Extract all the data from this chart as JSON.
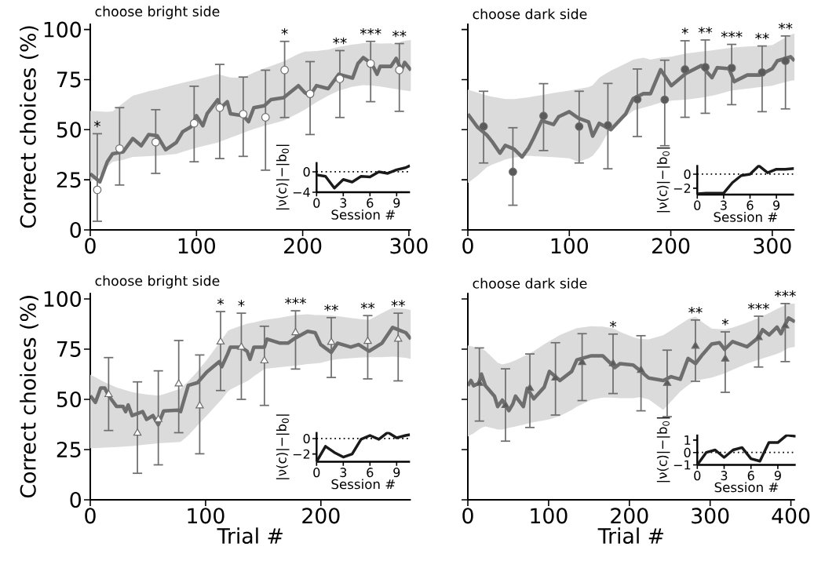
{
  "chart_data": [
    {
      "type": "line",
      "title": "choose bright side",
      "ylabel": "Correct choices (%)",
      "xlim": [
        0,
        302
      ],
      "ylim": [
        0,
        103
      ],
      "xticks": [
        0,
        100,
        200,
        300
      ],
      "yticks": [
        0,
        25,
        50,
        75,
        100
      ],
      "series": [
        {
          "color": "#6e6e6e",
          "x": [
            0,
            9,
            16,
            21,
            31,
            40,
            48,
            55,
            63,
            71,
            81,
            87,
            95,
            100,
            106,
            110,
            120,
            123,
            129,
            132,
            144,
            149,
            154,
            164,
            170,
            182,
            196,
            202,
            207,
            213,
            224,
            234,
            247,
            252,
            257,
            265,
            270,
            273,
            283,
            288,
            293,
            296,
            302
          ],
          "values": [
            28,
            24,
            34,
            38,
            39,
            45.6,
            42,
            47.6,
            47,
            40,
            43.6,
            49,
            51.5,
            57,
            52,
            58,
            65,
            61,
            64,
            58,
            57,
            54,
            61,
            62,
            65,
            66,
            72,
            68.5,
            67,
            72,
            70.5,
            77.7,
            75.8,
            83,
            86,
            83,
            77.7,
            81.6,
            81.6,
            85.6,
            79.7,
            83.6,
            79.7
          ],
          "lower": [
            24,
            27.5,
            31.5,
            34,
            35,
            36.4,
            36.6,
            36.8,
            37,
            37.4,
            37.9,
            39,
            40.2,
            41,
            41.8,
            42.3,
            43.6,
            44.2,
            45.4,
            46,
            48.4,
            49.4,
            50.3,
            52,
            52.8,
            54.5,
            58.3,
            60,
            61.7,
            63.7,
            67,
            69.5,
            71.5,
            71.9,
            72.3,
            72.1,
            71.8,
            71.6,
            70.7,
            70.3,
            69.8,
            69.6,
            69.2
          ],
          "upper": [
            59.4,
            59.1,
            58.9,
            59.1,
            63.3,
            67,
            68.1,
            69.2,
            70.1,
            71.3,
            72.6,
            73.4,
            74.4,
            75,
            75.8,
            76.4,
            77.7,
            77.3,
            76.5,
            76.1,
            76,
            77.2,
            78.5,
            80.7,
            81.8,
            84.1,
            87.8,
            89,
            89.1,
            89.3,
            90,
            91.3,
            92.5,
            92.8,
            93.2,
            93.3,
            93.1,
            93,
            93.1,
            92.5,
            94.1,
            94.4,
            94.8
          ]
        },
        {
          "type": "scatter",
          "marker": "circle",
          "color": "#ffffff",
          "x": [
            6.6,
            27.6,
            61.6,
            97.8,
            121.9,
            144,
            165,
            183,
            207,
            235,
            264,
            291
          ],
          "values": [
            20,
            40.6,
            43.8,
            53.2,
            61,
            57.8,
            56.2,
            79.8,
            67.9,
            75.4,
            83,
            79.8
          ],
          "errors": [
            [
              4.3,
              48
            ],
            [
              22.4,
              61
            ],
            [
              28.2,
              60
            ],
            [
              34,
              71.7
            ],
            [
              35.6,
              82.6
            ],
            [
              36.7,
              76.3
            ],
            [
              29.8,
              79.7
            ],
            [
              56.1,
              94.1
            ],
            [
              47.6,
              84
            ],
            [
              56.1,
              89.5
            ],
            [
              64,
              94.1
            ],
            [
              59.2,
              93
            ]
          ]
        }
      ],
      "annotations": [
        {
          "text": "*",
          "x": 6.6,
          "y": 48
        },
        {
          "text": "*",
          "x": 183,
          "y": 94.1
        },
        {
          "text": "**",
          "x": 235,
          "y": 89.5
        },
        {
          "text": "***",
          "x": 264,
          "y": 94.1
        },
        {
          "text": "**",
          "x": 291,
          "y": 93
        }
      ]
    },
    {
      "type": "line",
      "xlabel": "Session #",
      "ylabel": "|ν(c)|−|b$_{0}$|",
      "xlim": [
        0,
        10.5
      ],
      "ylim": [
        -4,
        1.9
      ],
      "xticks": [
        0,
        3,
        6,
        9
      ],
      "yticks": [
        0,
        {
          "value": -4,
          "label": "−4"
        }
      ],
      "series": [
        {
          "color": "#1a1a1a",
          "x": [
            0,
            1,
            2,
            3,
            4,
            5,
            6,
            7,
            8,
            9,
            10,
            10.5
          ],
          "values": [
            -0.6,
            -0.9,
            -3.2,
            -1.5,
            -2.0,
            -0.9,
            -1.0,
            0,
            -0.3,
            0.4,
            0.8,
            1.2
          ]
        }
      ],
      "ref_lines": [
        {
          "axis": "y",
          "value": 0,
          "line_style": "dotted",
          "color": "#000000"
        }
      ]
    },
    {
      "type": "line",
      "title": "choose dark side",
      "xlim": [
        0,
        322
      ],
      "ylim": [
        0,
        103
      ],
      "xticks": [
        0,
        100,
        200,
        300
      ],
      "yticks": [
        0,
        25,
        50,
        75,
        100
      ],
      "tick_labels": "x",
      "series": [
        {
          "color": "#6e6e6e",
          "x": [
            0,
            9.5,
            18.6,
            24,
            31.7,
            36.9,
            45.7,
            53.4,
            60,
            65,
            72.8,
            84.4,
            89.5,
            99.9,
            109,
            119,
            123,
            129.5,
            141,
            155.4,
            163,
            173,
            180,
            190,
            200.5,
            214.7,
            230,
            240.6,
            245.7,
            257.3,
            262.5,
            275.4,
            288,
            300,
            305,
            318,
            322
          ],
          "values": [
            57.8,
            51.3,
            47.4,
            44,
            38.3,
            42.2,
            40.3,
            36.4,
            41,
            46,
            54.5,
            52.6,
            56.5,
            59,
            55.8,
            53.9,
            46.8,
            53.2,
            50,
            57.8,
            65.6,
            68,
            68,
            80,
            72,
            78,
            82,
            76,
            81,
            80.5,
            74,
            77.3,
            77.3,
            80.5,
            84.4,
            86.4,
            84.4
          ],
          "lower": [
            23.4,
            27,
            31.2,
            32.6,
            34.1,
            35.1,
            36.1,
            36.6,
            37,
            36.8,
            36.6,
            36.3,
            36.1,
            35.7,
            34,
            35.7,
            37,
            41,
            51,
            56.5,
            59.5,
            61,
            62,
            63.5,
            64.5,
            65,
            66,
            67,
            67.6,
            69.2,
            69.7,
            70.5,
            71.3,
            72,
            72.7,
            74.4,
            74.7
          ],
          "upper": [
            70,
            68.5,
            67.1,
            66.5,
            65.8,
            65.3,
            65.3,
            65.8,
            66.2,
            66.7,
            67.3,
            68.3,
            68.7,
            69.5,
            70.4,
            71.3,
            72.2,
            76,
            79.5,
            83,
            85,
            86,
            85,
            86,
            86.5,
            88,
            89,
            89.6,
            90,
            90.8,
            91.1,
            91.5,
            91.8,
            92.2,
            93.7,
            97.4,
            98
          ]
        },
        {
          "type": "scatter",
          "marker": "circle",
          "color": "#5a5a5a",
          "x": [
            15.5,
            44.4,
            74.6,
            109.7,
            138,
            167,
            194,
            214,
            234,
            260,
            290,
            313
          ],
          "values": [
            51.6,
            29,
            56.9,
            51.6,
            52.2,
            65.2,
            65,
            80.1,
            81.2,
            80.8,
            78.6,
            84.4
          ],
          "errors": [
            [
              33.4,
              69.2
            ],
            [
              12.3,
              51
            ],
            [
              39.6,
              73
            ],
            [
              33.4,
              69.2
            ],
            [
              30.5,
              73.1
            ],
            [
              46.6,
              80.3
            ],
            [
              42,
              84.7
            ],
            [
              56.2,
              94.4
            ],
            [
              58.2,
              94.8
            ],
            [
              62.5,
              92.6
            ],
            [
              59,
              91.8
            ],
            [
              60.4,
              96.8
            ]
          ]
        }
      ],
      "annotations": [
        {
          "text": "*",
          "x": 214,
          "y": 94.4
        },
        {
          "text": "**",
          "x": 234,
          "y": 94.8
        },
        {
          "text": "***",
          "x": 260,
          "y": 92.6
        },
        {
          "text": "**",
          "x": 290,
          "y": 91.8
        },
        {
          "text": "**",
          "x": 313,
          "y": 96.8
        }
      ]
    },
    {
      "type": "line",
      "xlabel": "Session #",
      "ylabel": "|ν(c)|−|b$_{0}$|",
      "xlim": [
        0,
        11
      ],
      "ylim": [
        -2.9,
        1.3
      ],
      "xticks": [
        0,
        3,
        6,
        9
      ],
      "yticks": [
        0,
        {
          "value": -2,
          "label": "−2"
        }
      ],
      "series": [
        {
          "color": "#1a1a1a",
          "x": [
            0,
            1,
            2,
            3,
            4,
            5,
            6,
            7,
            8,
            9,
            10,
            11
          ],
          "values": [
            -2.8,
            -2.7,
            -2.7,
            -2.7,
            -1.2,
            -0.2,
            0,
            1.2,
            0.2,
            0.7,
            0.7,
            0.8
          ]
        }
      ],
      "ref_lines": [
        {
          "axis": "y",
          "value": 0,
          "line_style": "dotted",
          "color": "#000000"
        }
      ]
    },
    {
      "type": "line",
      "title": "choose bright side",
      "xlabel": "Trial #",
      "ylabel": "Correct choices (%)",
      "xlim": [
        0,
        278
      ],
      "ylim": [
        0,
        103
      ],
      "xticks": [
        0,
        100,
        200
      ],
      "yticks": [
        0,
        25,
        50,
        75,
        100
      ],
      "series": [
        {
          "color": "#6e6e6e",
          "x": [
            0,
            4.5,
            9,
            12.5,
            16,
            22.7,
            28.4,
            30.6,
            32.9,
            36.3,
            45.4,
            48.8,
            54.3,
            59,
            63.6,
            76,
            78.3,
            85,
            93,
            101,
            112,
            114,
            119.2,
            121.5,
            130.6,
            136,
            138.5,
            141.9,
            151,
            153.2,
            164.6,
            171.4,
            178,
            188.5,
            195,
            199.8,
            209,
            214.5,
            225.9,
            232.7,
            241.8,
            253,
            262.2,
            273.6,
            278
          ],
          "values": [
            51.8,
            48.5,
            55.7,
            55.7,
            51.8,
            46.5,
            46.5,
            43.9,
            47.2,
            41.9,
            43.9,
            40,
            41.9,
            37.4,
            44.2,
            44.6,
            43.9,
            57,
            58.3,
            63.6,
            68.8,
            66.2,
            72.7,
            76,
            76,
            74,
            70,
            76,
            76,
            80,
            78,
            78,
            80.6,
            83.9,
            83.2,
            77.3,
            73.4,
            78,
            76,
            77.3,
            74,
            78,
            85.8,
            83.2,
            80
          ],
          "lower": [
            25.6,
            25.7,
            25.9,
            26,
            26.1,
            26.3,
            26.5,
            26.6,
            26.7,
            26.8,
            27.3,
            27.5,
            27.8,
            28.1,
            28.3,
            28.7,
            28.8,
            32,
            37,
            41.9,
            48.8,
            50,
            53.9,
            54.9,
            57.5,
            59,
            60,
            61.5,
            65,
            65.3,
            66,
            66.4,
            66.8,
            67.6,
            67.9,
            68.2,
            69.5,
            70,
            70.5,
            70.8,
            71,
            71,
            71.3,
            70.7,
            70.1
          ],
          "upper": [
            62.3,
            61,
            59.6,
            58.6,
            57.6,
            56,
            55,
            54.6,
            54.2,
            53.6,
            52.7,
            52.4,
            52.1,
            51.9,
            52.5,
            54.9,
            55.4,
            59,
            64,
            69.6,
            78.2,
            79.8,
            84,
            84.8,
            86.6,
            87.7,
            88,
            88.3,
            89.5,
            89.7,
            90.6,
            91.4,
            92,
            92.4,
            92,
            92,
            91.8,
            91.4,
            90.5,
            90,
            89.5,
            93,
            95.6,
            95,
            94.4
          ]
        },
        {
          "type": "scatter",
          "marker": "triangle",
          "color": "#ffffff",
          "x": [
            15.9,
            40.9,
            59,
            76.7,
            94.9,
            113,
            131,
            151,
            178,
            209,
            240.6,
            267
          ],
          "values": [
            52.4,
            33.2,
            40,
            57.7,
            46.8,
            78.6,
            76,
            69.2,
            83.2,
            78.4,
            78.9,
            80
          ],
          "errors": [
            [
              34.5,
              70.8
            ],
            [
              13.2,
              58.7
            ],
            [
              17.4,
              64.2
            ],
            [
              33.4,
              79.3
            ],
            [
              22.9,
              72.1
            ],
            [
              54.4,
              93.7
            ],
            [
              50,
              92.9
            ],
            [
              47,
              86.4
            ],
            [
              65.1,
              94.1
            ],
            [
              60.9,
              90.7
            ],
            [
              60.2,
              91.7
            ],
            [
              59.2,
              92.9
            ]
          ]
        }
      ],
      "annotations": [
        {
          "text": "*",
          "x": 113,
          "y": 93.7
        },
        {
          "text": "*",
          "x": 131,
          "y": 92.9
        },
        {
          "text": "***",
          "x": 178,
          "y": 94.1
        },
        {
          "text": "**",
          "x": 209,
          "y": 90.7
        },
        {
          "text": "**",
          "x": 240.6,
          "y": 91.7
        },
        {
          "text": "**",
          "x": 267,
          "y": 92.9
        }
      ]
    },
    {
      "type": "line",
      "xlabel": "Session #",
      "ylabel": "|ν(c)|−|b$_{0}$|",
      "xlim": [
        0,
        10.5
      ],
      "ylim": [
        -3,
        0.85
      ],
      "xticks": [
        0,
        3,
        6,
        9
      ],
      "yticks": [
        0,
        {
          "value": -2,
          "label": "−2"
        }
      ],
      "series": [
        {
          "color": "#1a1a1a",
          "x": [
            0,
            1,
            2,
            3,
            4,
            5,
            6,
            7,
            8,
            9,
            10,
            10.5
          ],
          "values": [
            -3.0,
            -1.0,
            -1.8,
            -2.4,
            -2.0,
            -0.1,
            0.4,
            -0.1,
            0.8,
            0.1,
            0.4,
            0.5
          ]
        }
      ],
      "ref_lines": [
        {
          "axis": "y",
          "value": 0,
          "line_style": "dotted",
          "color": "#000000"
        }
      ]
    },
    {
      "type": "line",
      "title": "choose dark side",
      "xlabel": "Trial #",
      "xlim": [
        0,
        405
      ],
      "ylim": [
        0,
        103
      ],
      "xticks": [
        0,
        100,
        200,
        300,
        400
      ],
      "yticks": [
        0,
        25,
        50,
        75,
        100
      ],
      "tick_labels": "x",
      "series": [
        {
          "color": "#6e6e6e",
          "x": [
            0,
            3.9,
            7.1,
            13.6,
            16.8,
            21.7,
            33,
            36.9,
            42.7,
            50.8,
            55.7,
            59,
            68.7,
            73.5,
            81.6,
            94.6,
            101,
            114,
            128.6,
            135,
            152.9,
            167,
            177,
            182,
            188.5,
            204.7,
            212.6,
            224,
            242,
            251.7,
            263,
            272.7,
            282,
            290.5,
            301.9,
            311.6,
            318,
            327.8,
            345.6,
            360,
            365,
            373,
            382.8,
            387.7,
            397,
            405
          ],
          "values": [
            56.8,
            59.4,
            56.8,
            58,
            62.6,
            56.8,
            51.6,
            46.4,
            49.6,
            44.4,
            47.7,
            51.6,
            46.4,
            55.5,
            50.3,
            56.1,
            63.9,
            59.4,
            63.9,
            69.7,
            71.7,
            71.7,
            67.8,
            65.8,
            67.8,
            67.1,
            64.5,
            60.6,
            59.4,
            61.3,
            60,
            70.4,
            67.8,
            72.3,
            77.5,
            78.2,
            74.9,
            78.8,
            76.2,
            80.8,
            84.7,
            82.1,
            86,
            82.7,
            90.5,
            88.6
          ],
          "lower": [
            31.4,
            32.4,
            33,
            35,
            35.8,
            36.5,
            35.4,
            35,
            35,
            35.8,
            36.2,
            36.5,
            37.4,
            37.9,
            38.7,
            39.5,
            40,
            41.7,
            44.7,
            46.4,
            49.8,
            50.9,
            50.9,
            50.8,
            50.6,
            50.6,
            51.1,
            50,
            44.7,
            49,
            53.9,
            57,
            59.5,
            60,
            60.8,
            62.1,
            62.9,
            64.7,
            67.8,
            69.7,
            70.4,
            71.4,
            72.7,
            73.4,
            75.6,
            76.2
          ],
          "upper": [
            76.9,
            76.5,
            76.2,
            75.5,
            75.2,
            74.2,
            69.8,
            68.3,
            67.4,
            68.2,
            68.9,
            69.4,
            71.4,
            72.2,
            74,
            77.4,
            79,
            82,
            84.5,
            85.4,
            86.4,
            86.2,
            85.5,
            85,
            83.6,
            81,
            80.1,
            79.9,
            81.9,
            84.4,
            87.4,
            89.9,
            91.2,
            88.4,
            85.2,
            85,
            84.8,
            85.7,
            88.2,
            90.5,
            91.5,
            93,
            95,
            95.9,
            97.7,
            97.7
          ]
        },
        {
          "type": "scatter",
          "marker": "triangle",
          "color": "#5a5a5a",
          "x": [
            14.3,
            46.6,
            76.8,
            108.5,
            141.5,
            179.8,
            214.4,
            246.8,
            281.8,
            318.7,
            360,
            393
          ],
          "values": [
            58,
            47,
            55.5,
            60.6,
            68.4,
            67.8,
            64.5,
            58,
            76.5,
            70.1,
            80.8,
            86.6
          ],
          "errors": [
            [
              39.2,
              75.6
            ],
            [
              29.2,
              65.2
            ],
            [
              36,
              72.6
            ],
            [
              42.2,
              78.2
            ],
            [
              49.4,
              82.7
            ],
            [
              52.9,
              82.5
            ],
            [
              44.3,
              81.7
            ],
            [
              41.4,
              74.5
            ],
            [
              59,
              89.5
            ],
            [
              53.5,
              83.6
            ],
            [
              66.1,
              91.4
            ],
            [
              68.8,
              97.7
            ]
          ]
        }
      ],
      "annotations": [
        {
          "text": "*",
          "x": 179.8,
          "y": 82.5
        },
        {
          "text": "**",
          "x": 281.8,
          "y": 89.5
        },
        {
          "text": "*",
          "x": 318.7,
          "y": 83.6
        },
        {
          "text": "***",
          "x": 360,
          "y": 91.4
        },
        {
          "text": "***",
          "x": 393,
          "y": 97.7
        }
      ]
    },
    {
      "type": "line",
      "xlabel": "Session #",
      "ylabel": "|ν(c)|−|b$_{0}$|",
      "xlim": [
        0,
        11
      ],
      "ylim": [
        -1,
        1.45
      ],
      "xticks": [
        0,
        3,
        6,
        9
      ],
      "yticks": [
        1,
        0,
        {
          "value": -1,
          "label": "−1"
        }
      ],
      "series": [
        {
          "color": "#1a1a1a",
          "x": [
            0,
            1,
            2,
            3,
            4,
            5,
            6,
            7,
            8,
            9,
            10,
            11
          ],
          "values": [
            -1.0,
            0,
            0.2,
            -0.4,
            0.2,
            0.4,
            -0.5,
            -0.7,
            0.8,
            0.8,
            1.4,
            1.3
          ]
        }
      ],
      "ref_lines": [
        {
          "axis": "y",
          "value": 0,
          "line_style": "dotted",
          "color": "#000000"
        }
      ]
    }
  ]
}
